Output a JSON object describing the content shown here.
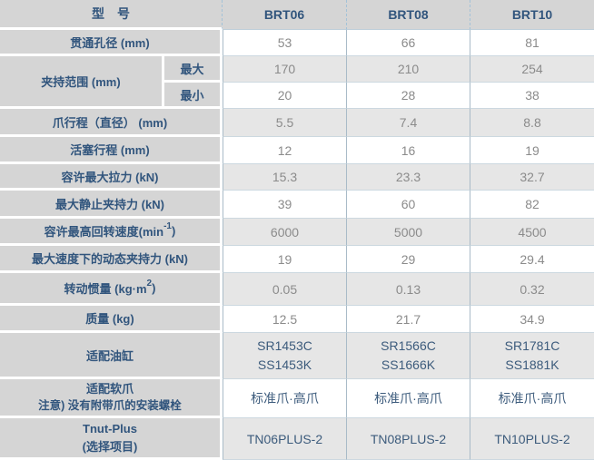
{
  "colors": {
    "header_bg": "#d5d5d5",
    "label_bg": "#d5d5d5",
    "row_gray": "#e6e6e6",
    "row_white": "#ffffff",
    "label_text": "#31557d",
    "value_text": "#8b8b8b",
    "dark_value_text": "#3c5b7c",
    "column_line": "#a9bbc8",
    "row_hairline": "#ccd8e0"
  },
  "table": {
    "title_cell": "型　号",
    "model_columns": [
      "BRT06",
      "BRT08",
      "BRT10"
    ],
    "rows": {
      "bore": {
        "label": "贯通孔径 (mm)",
        "values": [
          "53",
          "66",
          "81"
        ]
      },
      "grip_range": {
        "label": "夹持范围 (mm)",
        "max": {
          "label": "最大",
          "values": [
            "170",
            "210",
            "254"
          ]
        },
        "min": {
          "label": "最小",
          "values": [
            "20",
            "28",
            "38"
          ]
        }
      },
      "jaw_stroke": {
        "label": "爪行程（直径） (mm)",
        "values": [
          "5.5",
          "7.4",
          "8.8"
        ]
      },
      "piston_stroke": {
        "label": "活塞行程 (mm)",
        "values": [
          "12",
          "16",
          "19"
        ]
      },
      "max_pull": {
        "label": "容许最大拉力 (kN)",
        "values": [
          "15.3",
          "23.3",
          "32.7"
        ]
      },
      "max_static_grip": {
        "label": "最大静止夹持力 (kN)",
        "values": [
          "39",
          "60",
          "82"
        ]
      },
      "max_speed": {
        "label_base": "容许最高回转速度(min",
        "label_sup": "-1",
        "label_tail": ")",
        "values": [
          "6000",
          "5000",
          "4500"
        ]
      },
      "dynamic_grip": {
        "label": "最大速度下的动态夹持力 (kN)",
        "values": [
          "19",
          "29",
          "29.4"
        ]
      },
      "inertia": {
        "label_base": "转动惯量 (kg·m",
        "label_sup": "2",
        "label_tail": ")",
        "values": [
          "0.05",
          "0.13",
          "0.32"
        ]
      },
      "mass": {
        "label": "质量 (kg)",
        "values": [
          "12.5",
          "21.7",
          "34.9"
        ]
      },
      "cylinder": {
        "label": "适配油缸",
        "values": [
          {
            "l1": "SR1453C",
            "l2": "SS1453K"
          },
          {
            "l1": "SR1566C",
            "l2": "SS1666K"
          },
          {
            "l1": "SR1781C",
            "l2": "SS1881K"
          }
        ]
      },
      "soft_jaw": {
        "label_l1": "适配软爪",
        "label_l2": "注意) 没有附带爪的安装螺栓",
        "values": [
          "标准爪·高爪",
          "标准爪·高爪",
          "标准爪·高爪"
        ]
      },
      "tnut": {
        "label_l1": "Tnut-Plus",
        "label_l2": "(选择项目)",
        "values": [
          "TN06PLUS-2",
          "TN08PLUS-2",
          "TN10PLUS-2"
        ]
      }
    }
  }
}
